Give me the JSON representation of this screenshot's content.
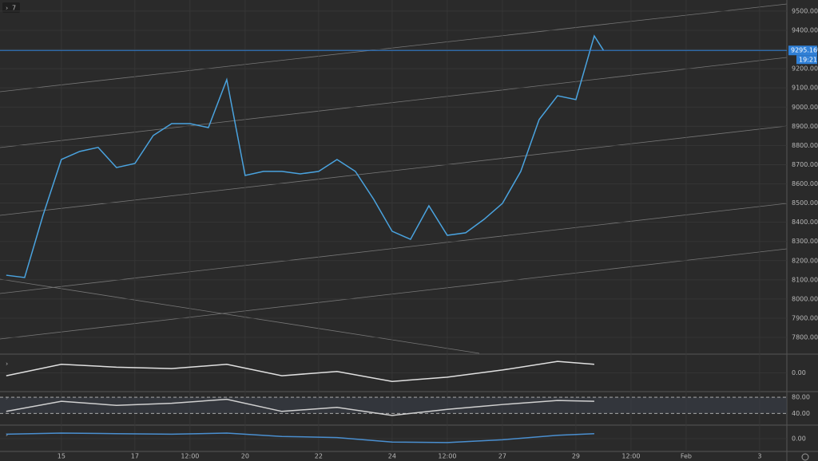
{
  "chart_data": [
    {
      "type": "line",
      "interval": "7",
      "x": [
        13.5,
        14,
        14.5,
        15,
        15.5,
        16,
        16.5,
        17,
        17.5,
        18,
        18.5,
        19,
        19.5,
        20,
        20.5,
        21,
        21.5,
        22,
        22.5,
        23,
        23.5,
        24,
        24.5,
        25,
        25.5,
        26,
        26.5,
        27,
        27.5,
        28,
        28.5,
        29,
        29.5,
        29.75
      ],
      "series": [
        {
          "color": "#4aa3df",
          "values": [
            8124,
            8112,
            8436,
            8727,
            8769,
            8790,
            8685,
            8706,
            8852,
            8914,
            8914,
            8893,
            9143,
            8644,
            8665,
            8665,
            8652,
            8665,
            8727,
            8665,
            8519,
            8353,
            8311,
            8486,
            8332,
            8345,
            8415,
            8498,
            8665,
            8935,
            9059,
            9039,
            9371,
            9296
          ]
        }
      ],
      "xlim": [
        13.33,
        34.74
      ],
      "xticks": [
        15,
        17,
        {
          "value": 18.5,
          "label": "12:00"
        },
        20,
        22,
        24,
        {
          "value": 25.5,
          "label": "12:00"
        },
        27,
        29,
        {
          "value": 30.5,
          "label": "12:00"
        },
        {
          "value": 32,
          "label": "Feb"
        },
        {
          "value": 34,
          "label": "3"
        }
      ],
      "ylim": [
        7717,
        9558
      ],
      "yticks": [
        {
          "value": 7800,
          "label": "7800.00"
        },
        {
          "value": 7900,
          "label": "7900.00"
        },
        {
          "value": 8000,
          "label": "8000.00"
        },
        {
          "value": 8100,
          "label": "8100.00"
        },
        {
          "value": 8200,
          "label": "8200.00"
        },
        {
          "value": 8300,
          "label": "8300.00"
        },
        {
          "value": 8400,
          "label": "8400.00"
        },
        {
          "value": 8500,
          "label": "8500.00"
        },
        {
          "value": 8600,
          "label": "8600.00"
        },
        {
          "value": 8700,
          "label": "8700.00"
        },
        {
          "value": 8800,
          "label": "8800.00"
        },
        {
          "value": 8900,
          "label": "8900.00"
        },
        {
          "value": 9000,
          "label": "9000.00"
        },
        {
          "value": 9100,
          "label": "9100.00"
        },
        {
          "value": 9200,
          "label": "9200.00"
        },
        {
          "value": 9300,
          "label": "9300.00"
        },
        {
          "value": 9400,
          "label": "9400.00"
        },
        {
          "value": 9500,
          "label": "9500.00"
        }
      ],
      "last_price": {
        "value": 9295.16,
        "label": "9295.16"
      },
      "countdown": "19:21",
      "grid": true
    },
    {
      "type": "line",
      "x": [
        13.5,
        15,
        16.5,
        18,
        19.5,
        21,
        22.5,
        24,
        25.5,
        27,
        28.5,
        29.5
      ],
      "series": [
        {
          "color": "#e0e0e0",
          "values": [
            -20,
            60,
            40,
            30,
            60,
            -20,
            10,
            -60,
            -30,
            20,
            80,
            60
          ]
        }
      ],
      "xlim": [
        13.33,
        34.74
      ],
      "ylim": [
        -120,
        120
      ],
      "yticks": [
        {
          "value": 0,
          "label": "0.00"
        }
      ]
    },
    {
      "type": "line",
      "x": [
        13.5,
        15,
        16.5,
        18,
        19.5,
        21,
        22.5,
        24,
        25.5,
        27,
        28.5,
        29.5
      ],
      "series": [
        {
          "color": "#d0d0d0",
          "values": [
            45,
            70,
            60,
            65,
            75,
            45,
            55,
            35,
            50,
            62,
            72,
            70
          ]
        }
      ],
      "xlim": [
        13.33,
        34.74
      ],
      "ylim": [
        15,
        90
      ],
      "yticks": [
        {
          "value": 40,
          "label": "40.00"
        },
        {
          "value": 80,
          "label": "80.00"
        }
      ]
    },
    {
      "type": "line",
      "x": [
        13.5,
        15,
        16.5,
        18,
        19.5,
        21,
        22.5,
        24,
        25.5,
        27,
        28.5,
        29.5
      ],
      "series": [
        {
          "color": "#4a8fd0",
          "values": [
            0.4,
            0.5,
            0.45,
            0.4,
            0.5,
            0.2,
            0.1,
            -0.3,
            -0.35,
            -0.1,
            0.3,
            0.45
          ]
        }
      ],
      "xlim": [
        13.33,
        34.74
      ],
      "ylim": [
        -1,
        1
      ],
      "yticks": [
        {
          "value": 0,
          "label": "0.00"
        }
      ]
    }
  ]
}
